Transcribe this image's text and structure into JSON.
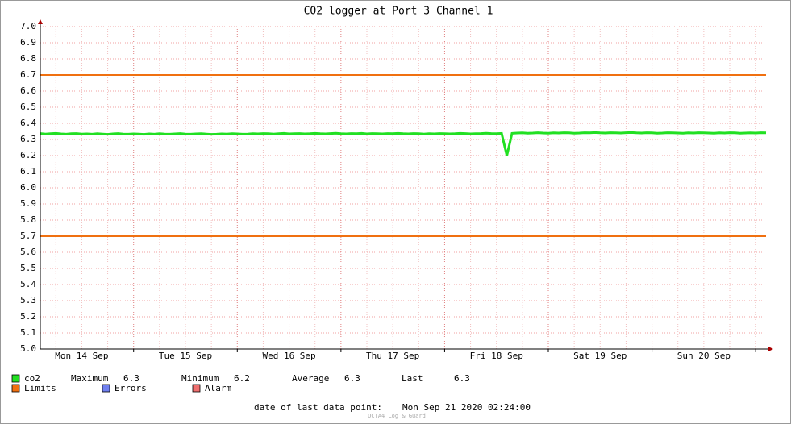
{
  "chart_data": {
    "type": "line",
    "title": "CO2 logger at Port 3 Channel 1",
    "x_tick_labels": [
      "Mon 14 Sep",
      "Tue 15 Sep",
      "Wed 16 Sep",
      "Thu 17 Sep",
      "Fri 18 Sep",
      "Sat 19 Sep",
      "Sun 20 Sep"
    ],
    "ylim": [
      5,
      7
    ],
    "yticks": [
      {
        "value": 5,
        "label": "5.0"
      },
      5.1,
      5.2,
      5.3,
      5.4,
      5.5,
      5.6,
      5.7,
      5.8,
      5.9,
      {
        "value": 6,
        "label": "6.0"
      },
      6.1,
      6.2,
      6.3,
      6.4,
      6.5,
      6.6,
      6.7,
      6.8,
      6.9,
      {
        "value": 7,
        "label": "7.0"
      }
    ],
    "grid": true,
    "series": [
      {
        "name": "co2",
        "color": "#22e022",
        "values": [
          6.337,
          6.334,
          6.336,
          6.338,
          6.335,
          6.333,
          6.336,
          6.337,
          6.334,
          6.335,
          6.333,
          6.336,
          6.334,
          6.332,
          6.335,
          6.337,
          6.334,
          6.333,
          6.335,
          6.334,
          6.332,
          6.335,
          6.333,
          6.336,
          6.334,
          6.333,
          6.335,
          6.337,
          6.334,
          6.333,
          6.335,
          6.336,
          6.334,
          6.332,
          6.333,
          6.335,
          6.334,
          6.336,
          6.335,
          6.333,
          6.334,
          6.336,
          6.335,
          6.337,
          6.336,
          6.334,
          6.336,
          6.338,
          6.335,
          6.336,
          6.337,
          6.335,
          6.336,
          6.338,
          6.336,
          6.335,
          6.337,
          6.339,
          6.336,
          6.335,
          6.337,
          6.336,
          6.338,
          6.335,
          6.337,
          6.336,
          6.335,
          6.337,
          6.336,
          6.338,
          6.336,
          6.335,
          6.337,
          6.336,
          6.334,
          6.336,
          6.335,
          6.337,
          6.336,
          6.335,
          6.336,
          6.338,
          6.337,
          6.335,
          6.336,
          6.337,
          6.339,
          6.337,
          6.336,
          6.338,
          6.2,
          6.338,
          6.34,
          6.341,
          6.339,
          6.34,
          6.342,
          6.34,
          6.339,
          6.341,
          6.34,
          6.342,
          6.341,
          6.339,
          6.34,
          6.342,
          6.341,
          6.343,
          6.341,
          6.34,
          6.342,
          6.341,
          6.34,
          6.342,
          6.343,
          6.341,
          6.34,
          6.342,
          6.341,
          6.339,
          6.34,
          6.342,
          6.341,
          6.34,
          6.339,
          6.341,
          6.34,
          6.342,
          6.341,
          6.34,
          6.339,
          6.341,
          6.34,
          6.342,
          6.341,
          6.339,
          6.34,
          6.341,
          6.34,
          6.342,
          6.341
        ]
      }
    ],
    "limits": {
      "name": "Limits",
      "color": "#f07010",
      "values": [
        6.7,
        5.7
      ]
    },
    "legend_extra": [
      {
        "name": "Errors",
        "color": "#7080f0"
      },
      {
        "name": "Alarm",
        "color": "#f07070"
      }
    ],
    "stats": [
      {
        "label": "Maximum",
        "value": "6.3"
      },
      {
        "label": "Minimum",
        "value": "6.2"
      },
      {
        "label": "Average",
        "value": "6.3"
      },
      {
        "label": "Last",
        "value": "6.3"
      }
    ],
    "footer": {
      "label": "date of last data point:",
      "value": "Mon Sep 21 2020 02:24:00"
    },
    "watermark": "OCTA4 Log & Guard"
  }
}
